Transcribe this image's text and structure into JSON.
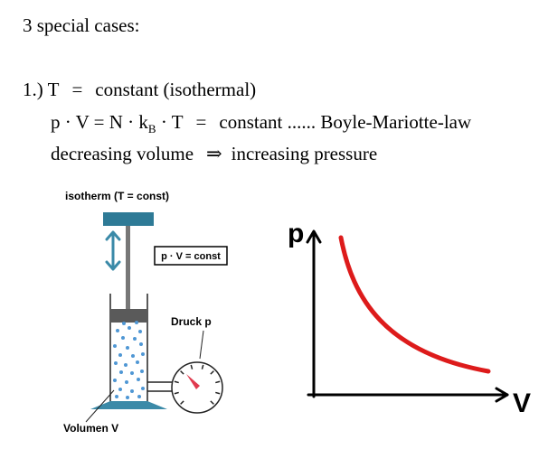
{
  "text": {
    "heading": "3 special cases:",
    "case1": {
      "number": "1.)",
      "title_var": "T",
      "title_eq": "=",
      "title_text": "constant (isothermal)",
      "eq_lhs": "p · V = N · k",
      "eq_sub": "B",
      "eq_mid": " · T",
      "eq_eq": "=",
      "eq_rhs": "constant ...... Boyle-Mariotte-law",
      "implication_left": "decreasing volume",
      "implication_arrow": "⇒",
      "implication_right": "increasing pressure"
    }
  },
  "piston_diagram": {
    "title": "isotherm (T = const)",
    "box_label": "p · V = const",
    "gauge_label": "Druck p",
    "volume_label": "Volumen V",
    "colors": {
      "plate": "#2e7a96",
      "arrow": "#3b8aa8",
      "particles": "#4f97d4",
      "needle": "#e03a4e",
      "piston": "#5a5a5a"
    }
  },
  "pv_graph": {
    "y_axis_label": "p",
    "x_axis_label": "V",
    "curve_color": "#dd1b1b"
  }
}
